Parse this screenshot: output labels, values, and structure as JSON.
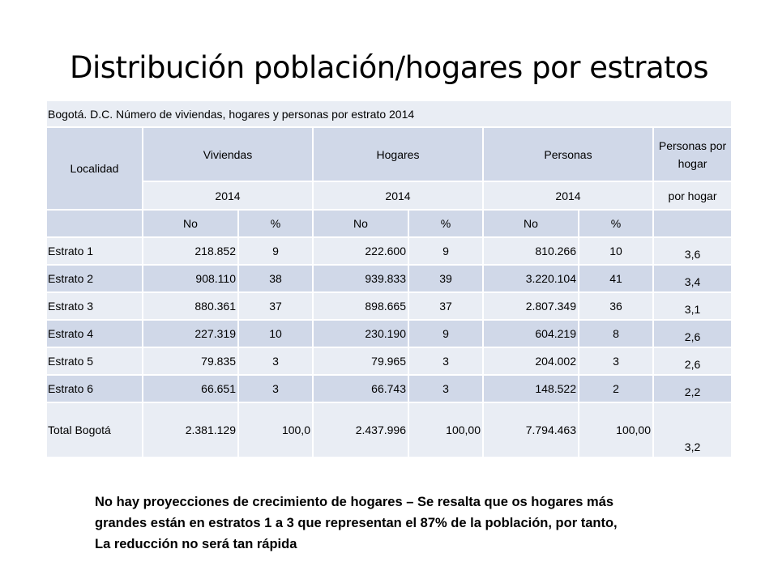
{
  "title": "Distribución población/hogares por estratos",
  "table": {
    "caption": "Bogotá. D.C. Número de viviendas, hogares y personas por estrato 2014",
    "headers": {
      "localidad": "Localidad",
      "viviendas": "Viviendas",
      "hogares": "Hogares",
      "personas": "Personas",
      "personas_por_hogar": "Personas por hogar",
      "year": "2014",
      "por_hogar": "por hogar",
      "no": "No",
      "pct": "%"
    },
    "rows": [
      {
        "estrato": "Estrato 1",
        "viv_no": "218.852",
        "viv_pct": "9",
        "hog_no": "222.600",
        "hog_pct": "9",
        "per_no": "810.266",
        "per_pct": "10",
        "pph": "3,6"
      },
      {
        "estrato": "Estrato 2",
        "viv_no": "908.110",
        "viv_pct": "38",
        "hog_no": "939.833",
        "hog_pct": "39",
        "per_no": "3.220.104",
        "per_pct": "41",
        "pph": "3,4"
      },
      {
        "estrato": "Estrato 3",
        "viv_no": "880.361",
        "viv_pct": "37",
        "hog_no": "898.665",
        "hog_pct": "37",
        "per_no": "2.807.349",
        "per_pct": "36",
        "pph": "3,1"
      },
      {
        "estrato": "Estrato 4",
        "viv_no": "227.319",
        "viv_pct": "10",
        "hog_no": "230.190",
        "hog_pct": "9",
        "per_no": "604.219",
        "per_pct": "8",
        "pph": "2,6"
      },
      {
        "estrato": "Estrato 5",
        "viv_no": "79.835",
        "viv_pct": "3",
        "hog_no": "79.965",
        "hog_pct": "3",
        "per_no": "204.002",
        "per_pct": "3",
        "pph": "2,6"
      },
      {
        "estrato": "Estrato 6",
        "viv_no": "66.651",
        "viv_pct": "3",
        "hog_no": "66.743",
        "hog_pct": "3",
        "per_no": "148.522",
        "per_pct": "2",
        "pph": "2,2"
      }
    ],
    "total": {
      "estrato": "Total Bogotá",
      "viv_no": "2.381.129",
      "viv_pct": "100,0",
      "hog_no": "2.437.996",
      "hog_pct": "100,00",
      "per_no": "7.794.463",
      "per_pct": "100,00",
      "pph": "3,2"
    }
  },
  "note": {
    "line1": "No hay proyecciones de crecimiento de hogares – Se resalta que os hogares más",
    "line2": "grandes están en estratos 1 a 3 que representan el 87% de la población, por tanto,",
    "line3": "La reducción no será tan rápida"
  }
}
